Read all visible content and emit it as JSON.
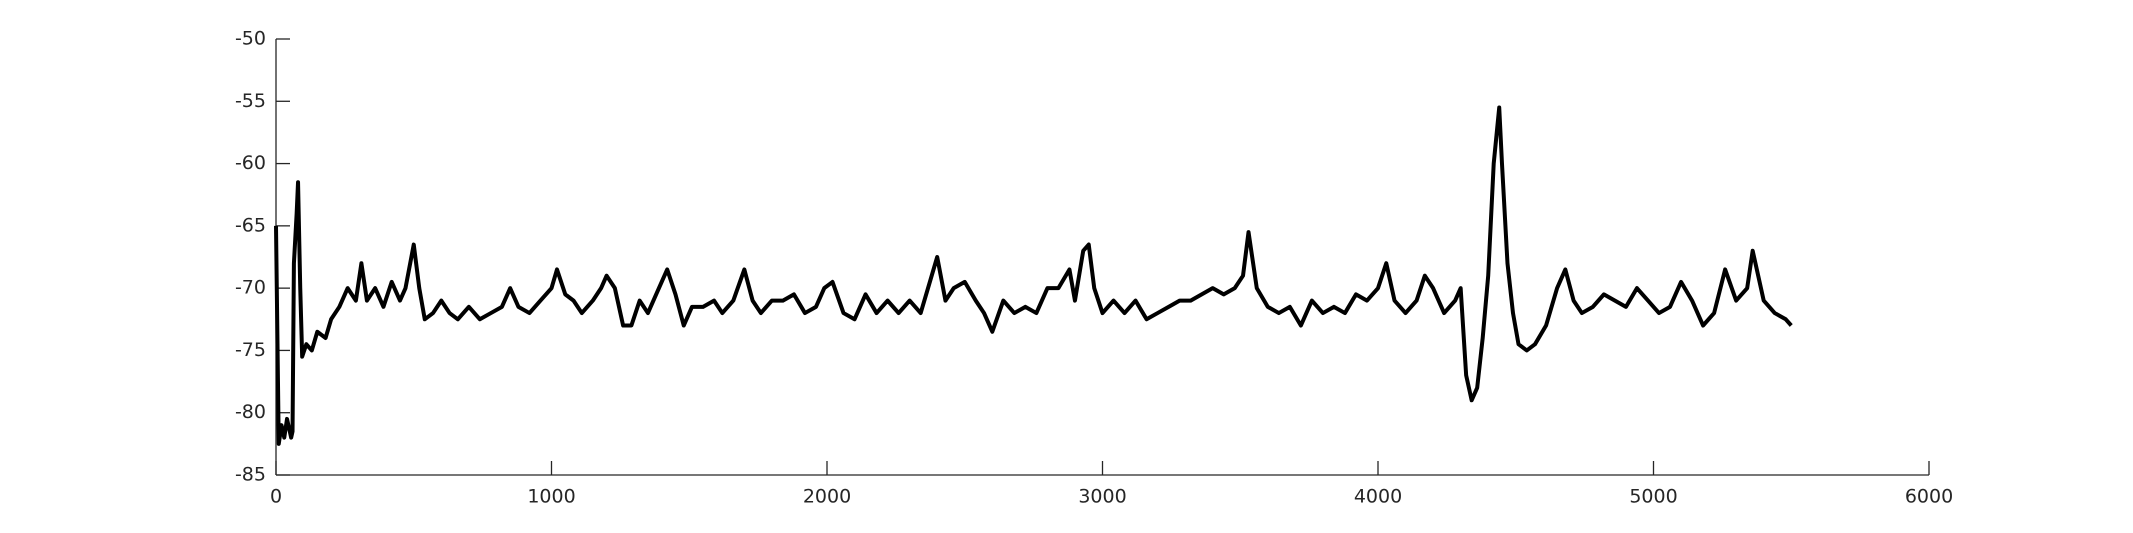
{
  "chart_data": {
    "type": "line",
    "color": "#000000",
    "x": [
      0,
      10,
      20,
      30,
      40,
      55,
      60,
      65,
      75,
      80,
      88,
      95,
      110,
      130,
      150,
      180,
      200,
      230,
      260,
      290,
      310,
      330,
      360,
      390,
      420,
      450,
      470,
      500,
      520,
      540,
      570,
      600,
      630,
      660,
      700,
      740,
      780,
      820,
      850,
      880,
      920,
      960,
      1000,
      1020,
      1050,
      1080,
      1110,
      1150,
      1180,
      1200,
      1230,
      1260,
      1290,
      1320,
      1350,
      1380,
      1420,
      1450,
      1480,
      1510,
      1550,
      1590,
      1620,
      1660,
      1700,
      1730,
      1760,
      1800,
      1840,
      1880,
      1920,
      1960,
      1990,
      2020,
      2060,
      2100,
      2140,
      2180,
      2220,
      2260,
      2300,
      2340,
      2380,
      2400,
      2430,
      2460,
      2500,
      2540,
      2570,
      2600,
      2640,
      2680,
      2720,
      2760,
      2800,
      2840,
      2880,
      2900,
      2930,
      2950,
      2970,
      3000,
      3040,
      3080,
      3120,
      3160,
      3200,
      3240,
      3280,
      3320,
      3360,
      3400,
      3440,
      3480,
      3510,
      3530,
      3560,
      3600,
      3640,
      3680,
      3720,
      3760,
      3800,
      3840,
      3880,
      3920,
      3960,
      4000,
      4030,
      4060,
      4100,
      4140,
      4170,
      4200,
      4240,
      4280,
      4300,
      4320,
      4340,
      4360,
      4380,
      4400,
      4420,
      4440,
      4450,
      4470,
      4490,
      4510,
      4540,
      4570,
      4610,
      4650,
      4680,
      4710,
      4740,
      4780,
      4820,
      4860,
      4900,
      4940,
      4980,
      5020,
      5060,
      5100,
      5140,
      5180,
      5220,
      5260,
      5300,
      5340,
      5360,
      5400,
      5440,
      5480,
      5500
    ],
    "values": [
      -65,
      -82.5,
      -81,
      -82,
      -80.5,
      -82,
      -81.5,
      -68,
      -64,
      -61.5,
      -70,
      -75.5,
      -74.5,
      -75,
      -73.5,
      -74,
      -72.5,
      -71.5,
      -70,
      -71,
      -68,
      -71,
      -70,
      -71.5,
      -69.5,
      -71,
      -70,
      -66.5,
      -70,
      -72.5,
      -72,
      -71,
      -72,
      -72.5,
      -71.5,
      -72.5,
      -72,
      -71.5,
      -70,
      -71.5,
      -72,
      -71,
      -70,
      -68.5,
      -70.5,
      -71,
      -72,
      -71,
      -70,
      -69,
      -70,
      -73,
      -73,
      -71,
      -72,
      -70.5,
      -68.5,
      -70.5,
      -73,
      -71.5,
      -71.5,
      -71,
      -72,
      -71,
      -68.5,
      -71,
      -72,
      -71,
      -71,
      -70.5,
      -72,
      -71.5,
      -70,
      -69.5,
      -72,
      -72.5,
      -70.5,
      -72,
      -71,
      -72,
      -71,
      -72,
      -69,
      -67.5,
      -71,
      -70,
      -69.5,
      -71,
      -72,
      -73.5,
      -71,
      -72,
      -71.5,
      -72,
      -70,
      -70,
      -68.5,
      -71,
      -67,
      -66.5,
      -70,
      -72,
      -71,
      -72,
      -71,
      -72.5,
      -72,
      -71.5,
      -71,
      -71,
      -70.5,
      -70,
      -70.5,
      -70,
      -69,
      -65.5,
      -70,
      -71.5,
      -72,
      -71.5,
      -73,
      -71,
      -72,
      -71.5,
      -72,
      -70.5,
      -71,
      -70,
      -68,
      -71,
      -72,
      -71,
      -69,
      -70,
      -72,
      -71,
      -70,
      -77,
      -79,
      -78,
      -74,
      -69,
      -60,
      -55.5,
      -60,
      -68,
      -72,
      -74.5,
      -75,
      -74.5,
      -73,
      -70,
      -68.5,
      -71,
      -72,
      -71.5,
      -70.5,
      -71,
      -71.5,
      -70,
      -71,
      -72,
      -71.5,
      -69.5,
      -71,
      -73,
      -72,
      -68.5,
      -71,
      -70,
      -67,
      -71,
      -72,
      -72.5,
      -73
    ],
    "xlim": [
      0,
      6000
    ],
    "xticks": [
      0,
      1000,
      2000,
      3000,
      4000,
      5000,
      6000
    ],
    "ylim": [
      -85,
      -50
    ],
    "yticks": [
      -85,
      -80,
      -75,
      -70,
      -65,
      -60,
      -55,
      -50
    ]
  }
}
